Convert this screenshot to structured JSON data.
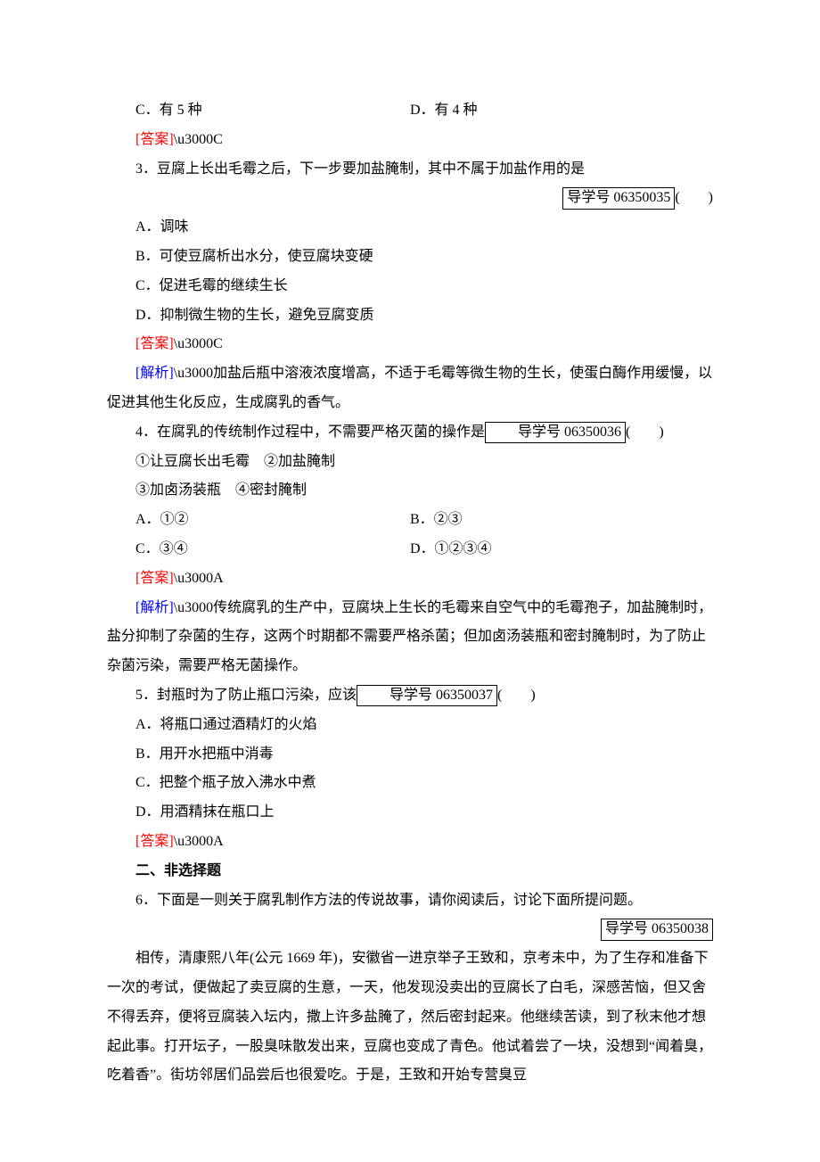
{
  "colors": {
    "text": "#000000",
    "background": "#ffffff",
    "answer_label": "#ff0000",
    "analysis_label": "#0000ff",
    "box_border": "#000000"
  },
  "typography": {
    "body_fontsize_pt": 12,
    "body_line_height": 2.05,
    "body_font": "SimSun",
    "heading_font": "SimHei"
  },
  "labels": {
    "answer": "[答案]",
    "analysis": "[解析]",
    "section2": "二、非选择题",
    "guide_prefix": "导学号 "
  },
  "q2_tail": {
    "optC": "C．有 5 种",
    "optD": "D．有 4 种",
    "answer": "C"
  },
  "q3": {
    "stem": "3．豆腐上长出毛霉之后，下一步要加盐腌制，其中不属于加盐作用的是",
    "guide": "06350035",
    "paren": "(　　)",
    "optA": "A．调味",
    "optB": "B．可使豆腐析出水分，使豆腐块变硬",
    "optC": "C．促进毛霉的继续生长",
    "optD": "D．抑制微生物的生长，避免豆腐变质",
    "answer": "C",
    "analysis": "加盐后瓶中溶液浓度增高，不适于毛霉等微生物的生长，使蛋白酶作用缓慢，以促进其他生化反应，生成腐乳的香气。"
  },
  "q4": {
    "stem_pre": "4．在腐乳的传统制作过程中，不需要严格灭菌的操作是",
    "guide": "06350036",
    "paren": "(　　)",
    "line1": "①让豆腐长出毛霉　②加盐腌制",
    "line2": "③加卤汤装瓶　④密封腌制",
    "optA": "A．①②",
    "optB": "B．②③",
    "optC": "C．③④",
    "optD": "D．①②③④",
    "answer": "A",
    "analysis": "传统腐乳的生产中，豆腐块上生长的毛霉来自空气中的毛霉孢子，加盐腌制时，盐分抑制了杂菌的生存，这两个时期都不需要严格杀菌；但加卤汤装瓶和密封腌制时，为了防止杂菌污染，需要严格无菌操作。"
  },
  "q5": {
    "stem_pre": "5．封瓶时为了防止瓶口污染，应该",
    "guide": "06350037",
    "paren": "(　　)",
    "optA": "A．将瓶口通过酒精灯的火焰",
    "optB": "B．用开水把瓶中消毒",
    "optC": "C．把整个瓶子放入沸水中煮",
    "optD": "D．用酒精抹在瓶口上",
    "answer": "A"
  },
  "q6": {
    "stem": "6．下面是一则关于腐乳制作方法的传说故事，请你阅读后，讨论下面所提问题。",
    "guide": "06350038",
    "story": "相传，清康熙八年(公元 1669 年)，安徽省一进京举子王致和，京考未中，为了生存和准备下一次的考试，便做起了卖豆腐的生意，一天，他发现没卖出的豆腐长了白毛，深感苦恼，但又舍不得丢弃，便将豆腐装入坛内，撒上许多盐腌了，然后密封起来。他继续苦读，到了秋末他才想起此事。打开坛子，一股臭味散发出来，豆腐也变成了青色。他试着尝了一块，没想到“闻着臭，吃着香”。街坊邻居们品尝后也很爱吃。于是，王致和开始专营臭豆"
  }
}
